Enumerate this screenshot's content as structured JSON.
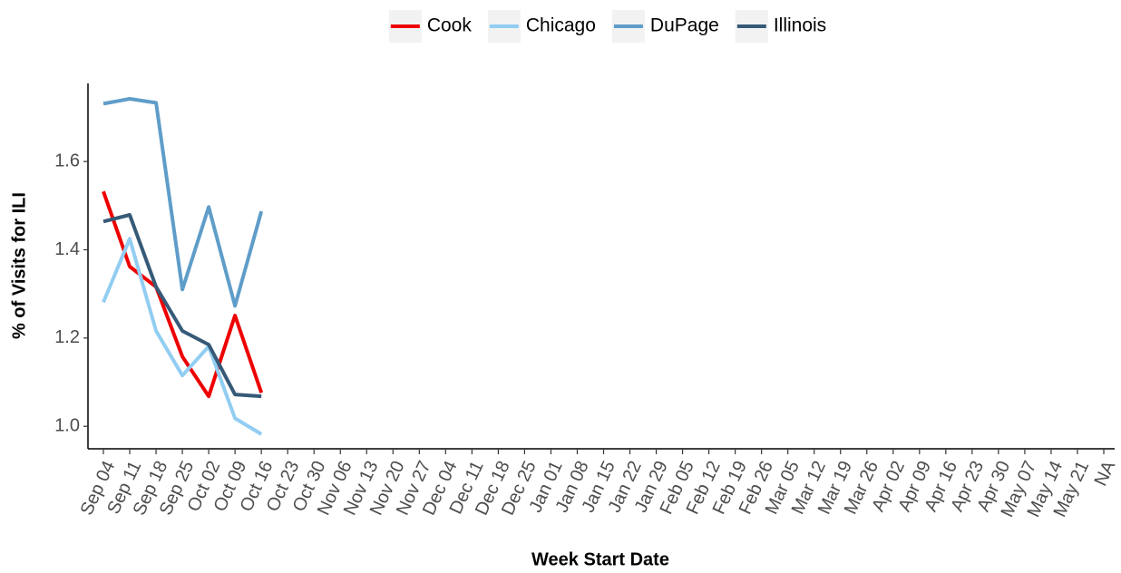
{
  "chart_data": {
    "type": "line",
    "x_label": "Week Start Date",
    "y_label": "% of Visits for ILI",
    "categories": [
      "Sep 04",
      "Sep 11",
      "Sep 18",
      "Sep 25",
      "Oct 02",
      "Oct 09",
      "Oct 16",
      "Oct 23",
      "Oct 30",
      "Nov 06",
      "Nov 13",
      "Nov 20",
      "Nov 27",
      "Dec 04",
      "Dec 11",
      "Dec 18",
      "Dec 25",
      "Jan 01",
      "Jan 08",
      "Jan 15",
      "Jan 22",
      "Jan 29",
      "Feb 05",
      "Feb 12",
      "Feb 19",
      "Feb 26",
      "Mar 05",
      "Mar 12",
      "Mar 19",
      "Mar 26",
      "Apr 02",
      "Apr 09",
      "Apr 16",
      "Apr 23",
      "Apr 30",
      "May 07",
      "May 14",
      "May 21",
      "NA"
    ],
    "series": [
      {
        "name": "Cook",
        "color": "#ee0000",
        "values": [
          1.532,
          1.362,
          1.316,
          1.158,
          1.068,
          1.251,
          1.076,
          null,
          null,
          null,
          null,
          null,
          null,
          null,
          null,
          null,
          null,
          null,
          null,
          null,
          null,
          null,
          null,
          null,
          null,
          null,
          null,
          null,
          null,
          null,
          null,
          null,
          null,
          null,
          null,
          null,
          null,
          null,
          null
        ]
      },
      {
        "name": "Chicago",
        "color": "#92cdf2",
        "values": [
          1.281,
          1.425,
          1.216,
          1.115,
          1.181,
          1.018,
          0.982,
          null,
          null,
          null,
          null,
          null,
          null,
          null,
          null,
          null,
          null,
          null,
          null,
          null,
          null,
          null,
          null,
          null,
          null,
          null,
          null,
          null,
          null,
          null,
          null,
          null,
          null,
          null,
          null,
          null,
          null,
          null,
          null
        ]
      },
      {
        "name": "DuPage",
        "color": "#5f9dc9",
        "values": [
          1.731,
          1.742,
          1.733,
          1.31,
          1.497,
          1.273,
          1.487,
          null,
          null,
          null,
          null,
          null,
          null,
          null,
          null,
          null,
          null,
          null,
          null,
          null,
          null,
          null,
          null,
          null,
          null,
          null,
          null,
          null,
          null,
          null,
          null,
          null,
          null,
          null,
          null,
          null,
          null,
          null,
          null
        ]
      },
      {
        "name": "Illinois",
        "color": "#365a78",
        "values": [
          1.464,
          1.479,
          1.316,
          1.216,
          1.185,
          1.072,
          1.068,
          null,
          null,
          null,
          null,
          null,
          null,
          null,
          null,
          null,
          null,
          null,
          null,
          null,
          null,
          null,
          null,
          null,
          null,
          null,
          null,
          null,
          null,
          null,
          null,
          null,
          null,
          null,
          null,
          null,
          null,
          null,
          null
        ]
      }
    ],
    "ylim": [
      0.949,
      1.777
    ],
    "yticks": [
      {
        "value": 1,
        "label": "1.0"
      },
      1.2,
      1.4,
      1.6
    ],
    "grid": false,
    "legend": "top"
  }
}
